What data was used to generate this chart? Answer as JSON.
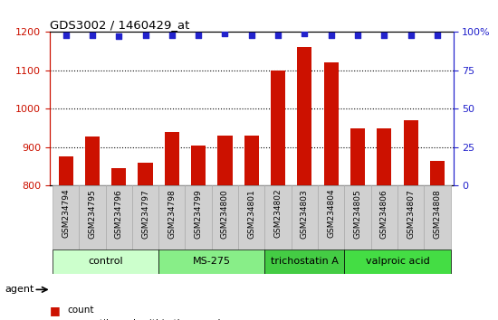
{
  "title": "GDS3002 / 1460429_at",
  "samples": [
    "GSM234794",
    "GSM234795",
    "GSM234796",
    "GSM234797",
    "GSM234798",
    "GSM234799",
    "GSM234800",
    "GSM234801",
    "GSM234802",
    "GSM234803",
    "GSM234804",
    "GSM234805",
    "GSM234806",
    "GSM234807",
    "GSM234808"
  ],
  "counts": [
    875,
    928,
    845,
    860,
    940,
    905,
    930,
    930,
    1100,
    1160,
    1120,
    950,
    950,
    970,
    865
  ],
  "percentile": [
    98,
    98,
    97,
    98,
    98,
    98,
    99,
    98,
    98,
    99,
    98,
    98,
    98,
    98,
    98
  ],
  "ylim_left": [
    800,
    1200
  ],
  "yticks_left": [
    800,
    900,
    1000,
    1100,
    1200
  ],
  "ylim_right": [
    0,
    100
  ],
  "yticks_right": [
    0,
    25,
    50,
    75,
    100
  ],
  "bar_color": "#cc1100",
  "dot_color": "#2222cc",
  "groups": [
    {
      "label": "control",
      "start": 0,
      "end": 3,
      "color": "#ccffcc"
    },
    {
      "label": "MS-275",
      "start": 4,
      "end": 7,
      "color": "#88ee88"
    },
    {
      "label": "trichostatin A",
      "start": 8,
      "end": 10,
      "color": "#44cc44"
    },
    {
      "label": "valproic acid",
      "start": 11,
      "end": 14,
      "color": "#44dd44"
    }
  ],
  "legend_count_color": "#cc1100",
  "legend_dot_color": "#2222cc",
  "xlabel_agent": "agent",
  "bg_color": "#ffffff",
  "axis_color_left": "#cc1100",
  "axis_color_right": "#2222cc",
  "bar_width": 0.55,
  "sample_bg": "#d0d0d0",
  "dotgrid_ticks": [
    900,
    1000,
    1100
  ]
}
